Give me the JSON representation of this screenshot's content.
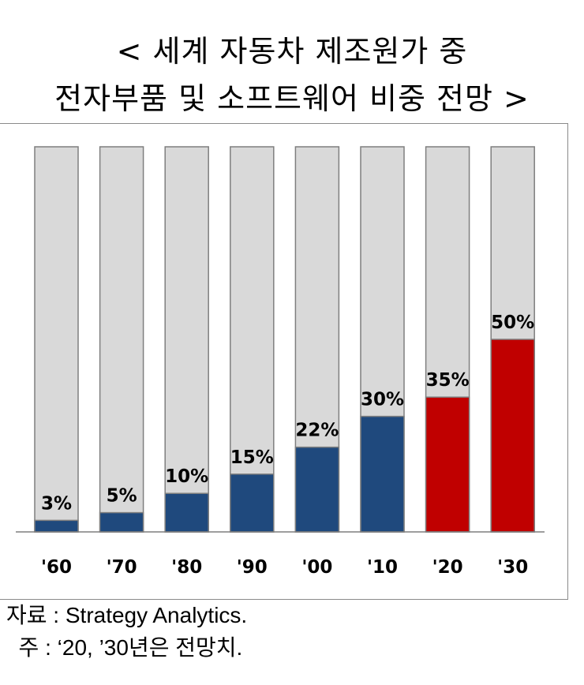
{
  "title_line1": "< 세계 자동차 제조원가 중",
  "title_line2": "전자부품 및 소프트웨어 비중 전망 >",
  "source_note": "자료 : Strategy Analytics.",
  "remark_note": "  주 : ‘20, ’30년은 전망치.",
  "colors": {
    "background_bar": "#d9d9d9",
    "bar_outline": "#7f7f7f",
    "actual": "#1f497d",
    "forecast": "#c00000",
    "axis": "#7f7f7f"
  },
  "chart_data": {
    "type": "bar",
    "title": "< 세계 자동차 제조원가 중 전자부품 및 소프트웨어 비중 전망 >",
    "categories": [
      "'60",
      "'70",
      "'80",
      "'90",
      "'00",
      "'10",
      "'20",
      "'30"
    ],
    "values": [
      3,
      5,
      10,
      15,
      22,
      30,
      35,
      50
    ],
    "data_labels": [
      "3%",
      "5%",
      "10%",
      "15%",
      "22%",
      "30%",
      "35%",
      "50%"
    ],
    "forecast_flags": [
      false,
      false,
      false,
      false,
      false,
      false,
      true,
      true
    ],
    "ylim": [
      0,
      100
    ],
    "stacked_background_total": 100,
    "xlabel": "",
    "ylabel": "",
    "grid": false,
    "legend": "none"
  }
}
